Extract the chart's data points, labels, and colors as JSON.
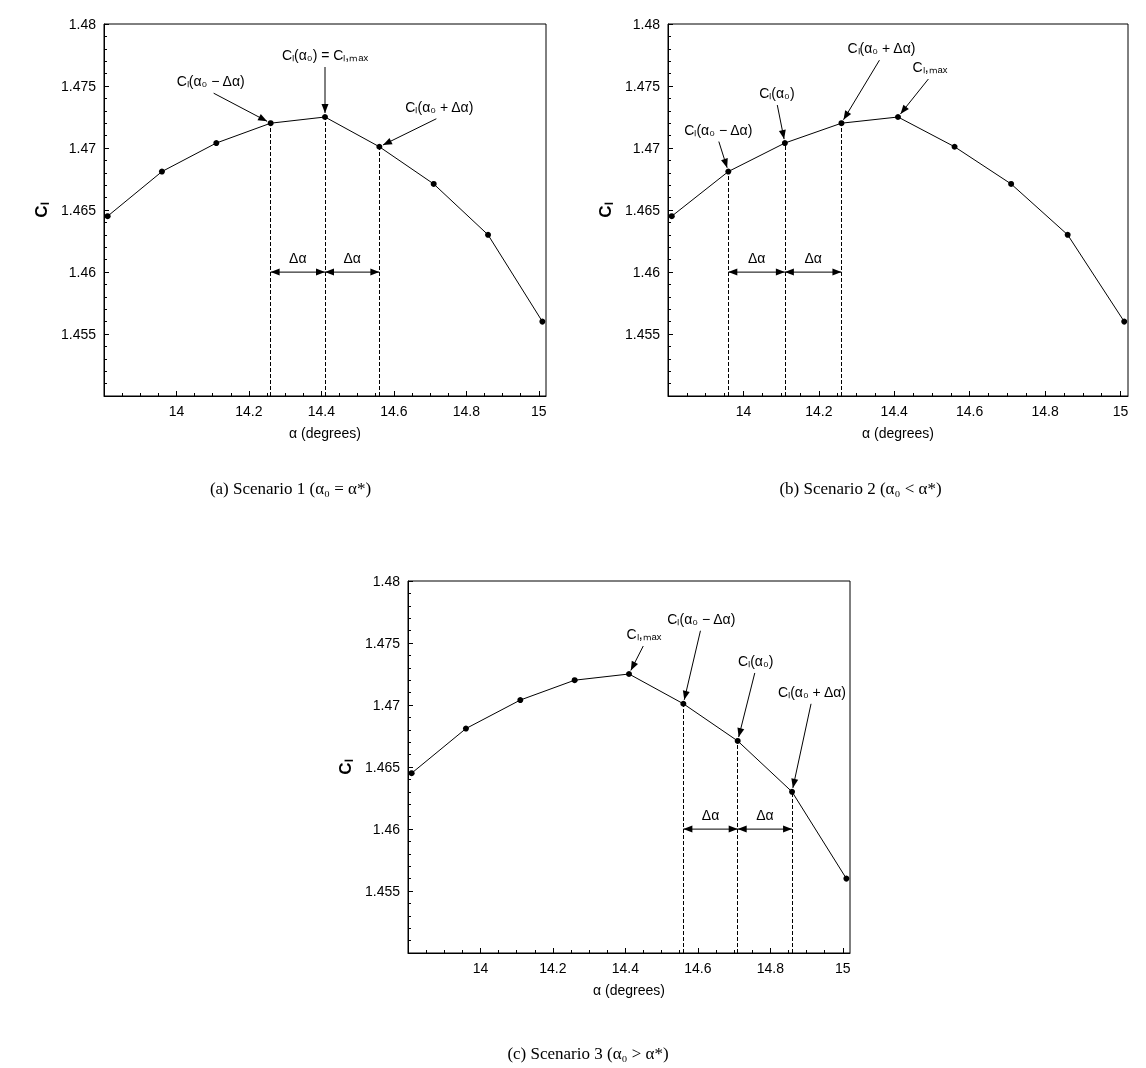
{
  "chart_data": [
    {
      "type": "line",
      "xlabel": "α (degrees)",
      "ylabel": "Cₗ",
      "x": [
        13.81,
        13.96,
        14.11,
        14.26,
        14.41,
        14.56,
        14.71,
        14.86,
        15.01
      ],
      "series": [
        {
          "color": "#000000",
          "values": [
            1.4645,
            1.4681,
            1.4704,
            1.472,
            1.4725,
            1.4701,
            1.4671,
            1.463,
            1.456
          ]
        }
      ],
      "xlim": [
        13.8,
        15.02
      ],
      "xticks": [
        14,
        14.2,
        14.4,
        14.6,
        14.8,
        15
      ],
      "ylim": [
        1.45,
        1.48
      ],
      "yticks": [
        1.455,
        1.46,
        1.465,
        1.47,
        1.475,
        1.48
      ],
      "marker": "circle",
      "line_style": "solid",
      "grid": false,
      "ref_lines": [
        {
          "axis": "x",
          "value": 14.26,
          "line_style": "dashed"
        },
        {
          "axis": "x",
          "value": 14.41,
          "line_style": "dashed"
        },
        {
          "axis": "x",
          "value": 14.56,
          "line_style": "dashed"
        }
      ],
      "annotations": [
        {
          "text": "Cₗ(α₀ − Δα)",
          "x": 14.26,
          "y": 1.472
        },
        {
          "text": "Cₗ(α₀) = Cₗ,ₘₐₓ",
          "x": 14.41,
          "y": 1.4725
        },
        {
          "text": "Cₗ(α₀ + Δα)",
          "x": 14.56,
          "y": 1.4701
        },
        "Δα",
        "Δα",
        "(a) Scenario 1 (α₀ = α*)"
      ]
    },
    {
      "type": "line",
      "xlabel": "α (degrees)",
      "ylabel": "Cₗ",
      "x": [
        13.81,
        13.96,
        14.11,
        14.26,
        14.41,
        14.56,
        14.71,
        14.86,
        15.01
      ],
      "series": [
        {
          "color": "#000000",
          "values": [
            1.4645,
            1.4681,
            1.4704,
            1.472,
            1.4725,
            1.4701,
            1.4671,
            1.463,
            1.456
          ]
        }
      ],
      "xlim": [
        13.8,
        15.02
      ],
      "xticks": [
        14,
        14.2,
        14.4,
        14.6,
        14.8,
        15
      ],
      "ylim": [
        1.45,
        1.48
      ],
      "yticks": [
        1.455,
        1.46,
        1.465,
        1.47,
        1.475,
        1.48
      ],
      "marker": "circle",
      "line_style": "solid",
      "grid": false,
      "ref_lines": [
        {
          "axis": "x",
          "value": 13.96,
          "line_style": "dashed"
        },
        {
          "axis": "x",
          "value": 14.11,
          "line_style": "dashed"
        },
        {
          "axis": "x",
          "value": 14.26,
          "line_style": "dashed"
        }
      ],
      "annotations": [
        {
          "text": "Cₗ(α₀ − Δα)",
          "x": 13.96,
          "y": 1.4681
        },
        {
          "text": "Cₗ(α₀)",
          "x": 14.11,
          "y": 1.4704
        },
        {
          "text": "Cₗ(α₀ + Δα)",
          "x": 14.26,
          "y": 1.472
        },
        {
          "text": "Cₗ,ₘₐₓ",
          "x": 14.41,
          "y": 1.4725
        },
        "Δα",
        "Δα",
        "(b) Scenario 2 (α₀ < α*)"
      ]
    },
    {
      "type": "line",
      "xlabel": "α (degrees)",
      "ylabel": "Cₗ",
      "x": [
        13.81,
        13.96,
        14.11,
        14.26,
        14.41,
        14.56,
        14.71,
        14.86,
        15.01
      ],
      "series": [
        {
          "color": "#000000",
          "values": [
            1.4645,
            1.4681,
            1.4704,
            1.472,
            1.4725,
            1.4701,
            1.4671,
            1.463,
            1.456
          ]
        }
      ],
      "xlim": [
        13.8,
        15.02
      ],
      "xticks": [
        14,
        14.2,
        14.4,
        14.6,
        14.8,
        15
      ],
      "ylim": [
        1.45,
        1.48
      ],
      "yticks": [
        1.455,
        1.46,
        1.465,
        1.47,
        1.475,
        1.48
      ],
      "marker": "circle",
      "line_style": "solid",
      "grid": false,
      "ref_lines": [
        {
          "axis": "x",
          "value": 14.56,
          "line_style": "dashed"
        },
        {
          "axis": "x",
          "value": 14.71,
          "line_style": "dashed"
        },
        {
          "axis": "x",
          "value": 14.86,
          "line_style": "dashed"
        }
      ],
      "annotations": [
        {
          "text": "Cₗ,ₘₐₓ",
          "x": 14.41,
          "y": 1.4725
        },
        {
          "text": "Cₗ(α₀ − Δα)",
          "x": 14.56,
          "y": 1.4701
        },
        {
          "text": "Cₗ(α₀)",
          "x": 14.71,
          "y": 1.4671
        },
        {
          "text": "Cₗ(α₀ + Δα)",
          "x": 14.86,
          "y": 1.463
        },
        "Δα",
        "Δα",
        "(c) Scenario 3 (α₀ > α*)"
      ]
    }
  ]
}
